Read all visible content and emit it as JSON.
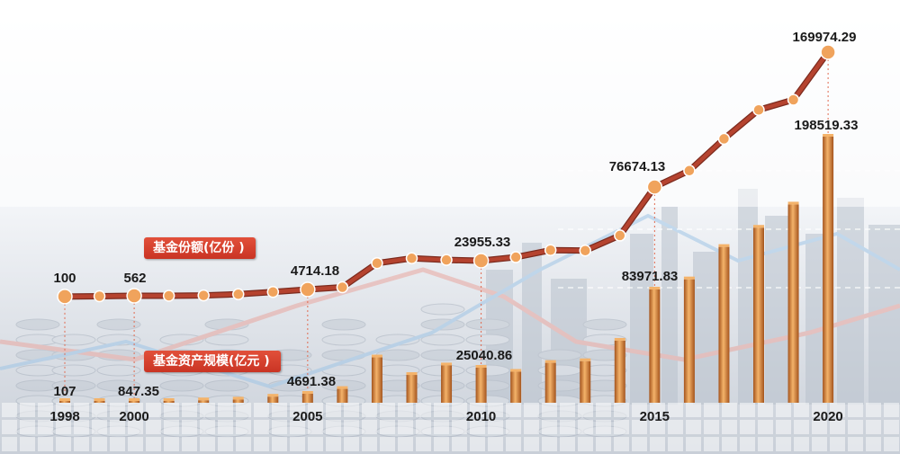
{
  "colors": {
    "line": "#b5432f",
    "marker": "#f0a35c",
    "bar_light": "#f4b36a",
    "bar_dark": "#a4541d",
    "badge": "#d23c2a",
    "text": "#1a1a1a"
  },
  "chart_data": {
    "type": "bar+line",
    "legend": {
      "shares": "基金份额(亿份 )",
      "assets": "基金资产规模(亿元 )"
    },
    "x": [
      1998,
      1999,
      2000,
      2001,
      2002,
      2003,
      2004,
      2005,
      2006,
      2007,
      2008,
      2009,
      2010,
      2011,
      2012,
      2013,
      2014,
      2015,
      2016,
      2017,
      2018,
      2019,
      2020
    ],
    "x_tick_labels": [
      {
        "year": 1998,
        "label": "1998"
      },
      {
        "year": 2000,
        "label": "2000"
      },
      {
        "year": 2005,
        "label": "2005"
      },
      {
        "year": 2010,
        "label": "2010"
      },
      {
        "year": 2015,
        "label": "2015"
      },
      {
        "year": 2020,
        "label": "2020"
      }
    ],
    "series": [
      {
        "name": "基金份额(亿份 )",
        "type": "line",
        "values": [
          100,
          300,
          562,
          600,
          800,
          1600,
          3100,
          4714.18,
          6200,
          22300,
          25700,
          24500,
          23955.33,
          26500,
          31500,
          31200,
          42000,
          76674.13,
          88000,
          110000,
          130000,
          137000,
          169974.29
        ],
        "labeled": [
          {
            "year": 1998,
            "label": "100"
          },
          {
            "year": 2000,
            "label": "562"
          },
          {
            "year": 2005,
            "label": "4714.18"
          },
          {
            "year": 2010,
            "label": "23955.33"
          },
          {
            "year": 2015,
            "label": "76674.13"
          },
          {
            "year": 2020,
            "label": "169974.29"
          }
        ]
      },
      {
        "name": "基金资产规模(亿元 )",
        "type": "bar",
        "values": [
          107,
          400,
          847.35,
          800,
          1300,
          1700,
          3200,
          4691.38,
          8500,
          32800,
          19400,
          26800,
          25040.86,
          21900,
          28700,
          30000,
          45400,
          83971.83,
          91600,
          115900,
          130300,
          147700,
          198519.33
        ],
        "labeled": [
          {
            "year": 1998,
            "label": "107"
          },
          {
            "year": 2000,
            "label": "847.35"
          },
          {
            "year": 2005,
            "label": "4691.38"
          },
          {
            "year": 2010,
            "label": "25040.86"
          },
          {
            "year": 2015,
            "label": "83971.83"
          },
          {
            "year": 2020,
            "label": "198519.33"
          }
        ]
      }
    ]
  }
}
